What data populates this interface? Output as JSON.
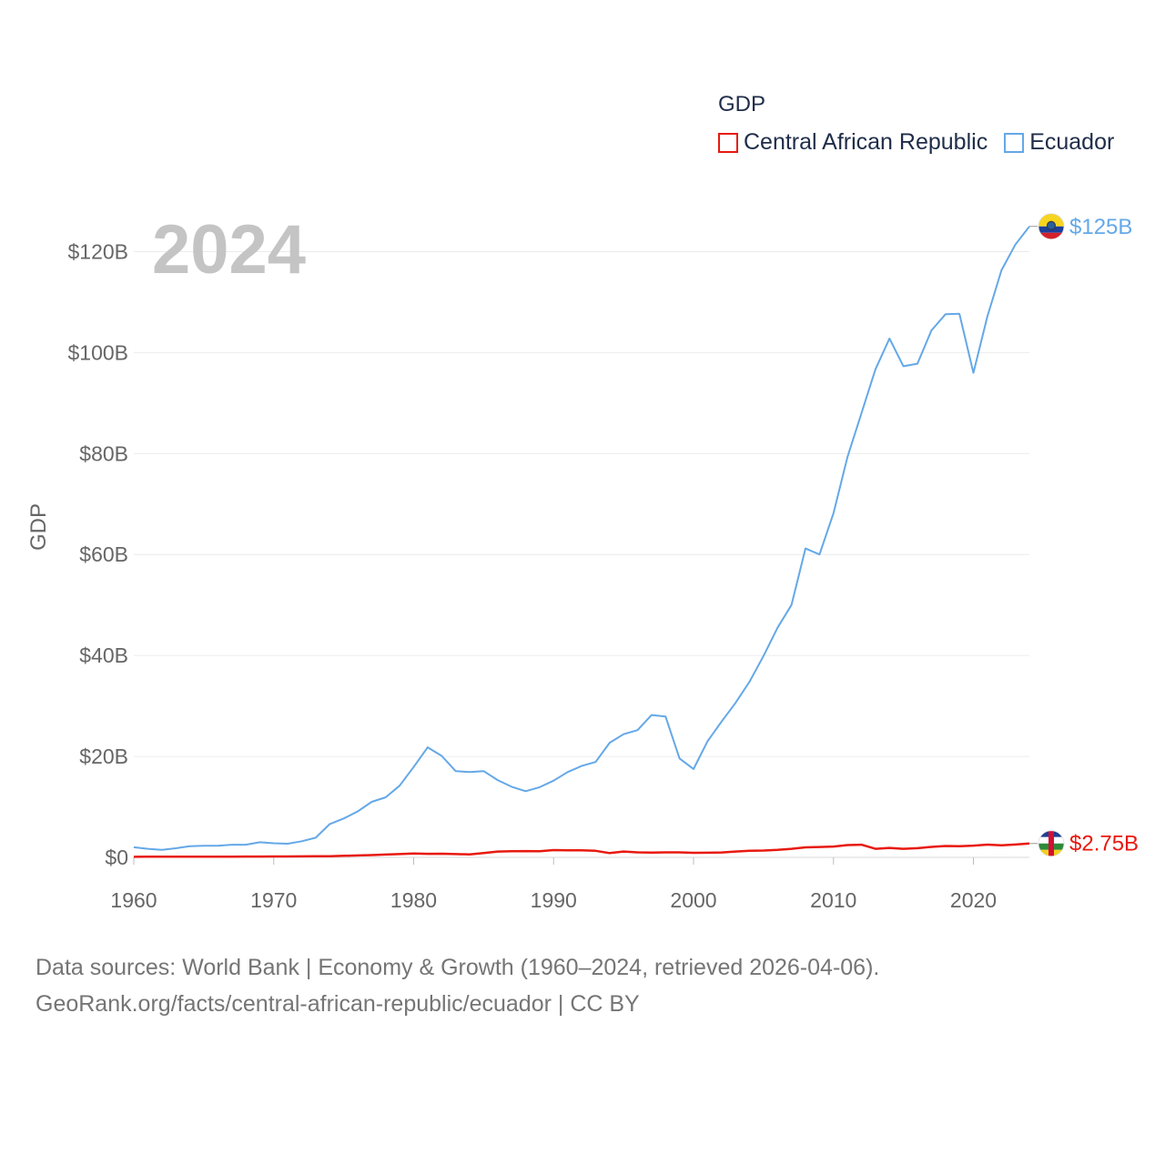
{
  "chart_data": {
    "type": "line",
    "year_label": "2024",
    "ylabel": "GDP",
    "xlim": [
      1960,
      2024
    ],
    "ylim": [
      0,
      125
    ],
    "x_ticks": [
      1960,
      1970,
      1980,
      1990,
      2000,
      2010,
      2020
    ],
    "x_tick_labels": [
      "1960",
      "1970",
      "1980",
      "1990",
      "2000",
      "2010",
      "2020"
    ],
    "y_ticks": [
      0,
      20,
      40,
      60,
      80,
      100,
      120
    ],
    "y_tick_labels": [
      "$0",
      "$20B",
      "$40B",
      "$60B",
      "$80B",
      "$100B",
      "$120B"
    ],
    "legend": {
      "title": "GDP",
      "items": [
        {
          "label": "Central African Republic",
          "color": "#e8190f"
        },
        {
          "label": "Ecuador",
          "color": "#64a8e8"
        }
      ]
    },
    "series": [
      {
        "name": "Central African Republic",
        "color": "#e8190f",
        "end_label": "$2.75B",
        "x": [
          1960,
          1961,
          1962,
          1963,
          1964,
          1965,
          1966,
          1967,
          1968,
          1969,
          1970,
          1971,
          1972,
          1973,
          1974,
          1975,
          1976,
          1977,
          1978,
          1979,
          1980,
          1981,
          1982,
          1983,
          1984,
          1985,
          1986,
          1987,
          1988,
          1989,
          1990,
          1991,
          1992,
          1993,
          1994,
          1995,
          1996,
          1997,
          1998,
          1999,
          2000,
          2001,
          2002,
          2003,
          2004,
          2005,
          2006,
          2007,
          2008,
          2009,
          2010,
          2011,
          2012,
          2013,
          2014,
          2015,
          2016,
          2017,
          2018,
          2019,
          2020,
          2021,
          2022,
          2023,
          2024
        ],
        "values": [
          0.11,
          0.12,
          0.13,
          0.13,
          0.13,
          0.14,
          0.15,
          0.15,
          0.16,
          0.17,
          0.18,
          0.18,
          0.19,
          0.22,
          0.24,
          0.3,
          0.38,
          0.45,
          0.55,
          0.65,
          0.75,
          0.7,
          0.72,
          0.65,
          0.6,
          0.85,
          1.15,
          1.2,
          1.25,
          1.2,
          1.45,
          1.4,
          1.38,
          1.3,
          0.85,
          1.15,
          1.0,
          0.95,
          1.0,
          1.0,
          0.9,
          0.92,
          0.98,
          1.15,
          1.3,
          1.35,
          1.47,
          1.7,
          1.98,
          2.06,
          2.14,
          2.43,
          2.5,
          1.7,
          1.88,
          1.7,
          1.83,
          2.07,
          2.25,
          2.22,
          2.33,
          2.52,
          2.38,
          2.55,
          2.75
        ]
      },
      {
        "name": "Ecuador",
        "color": "#64a8e8",
        "end_label": "$125B",
        "x": [
          1960,
          1961,
          1962,
          1963,
          1964,
          1965,
          1966,
          1967,
          1968,
          1969,
          1970,
          1971,
          1972,
          1973,
          1974,
          1975,
          1976,
          1977,
          1978,
          1979,
          1980,
          1981,
          1982,
          1983,
          1984,
          1985,
          1986,
          1987,
          1988,
          1989,
          1990,
          1991,
          1992,
          1993,
          1994,
          1995,
          1996,
          1997,
          1998,
          1999,
          2000,
          2001,
          2002,
          2003,
          2004,
          2005,
          2006,
          2007,
          2008,
          2009,
          2010,
          2011,
          2012,
          2013,
          2014,
          2015,
          2016,
          2017,
          2018,
          2019,
          2020,
          2021,
          2022,
          2023,
          2024
        ],
        "values": [
          2.0,
          1.7,
          1.5,
          1.8,
          2.2,
          2.3,
          2.3,
          2.5,
          2.5,
          3.0,
          2.8,
          2.7,
          3.2,
          3.9,
          6.6,
          7.7,
          9.1,
          11.0,
          11.9,
          14.2,
          17.9,
          21.8,
          20.1,
          17.1,
          16.9,
          17.1,
          15.3,
          14.0,
          13.1,
          13.9,
          15.2,
          16.9,
          18.1,
          18.9,
          22.7,
          24.4,
          25.2,
          28.2,
          27.9,
          19.6,
          17.5,
          23.0,
          26.9,
          30.6,
          34.8,
          39.9,
          45.5,
          50.0,
          61.2,
          60.0,
          68.2,
          79.3,
          88.0,
          96.7,
          102.8,
          97.3,
          97.8,
          104.4,
          107.6,
          107.7,
          96.0,
          107.2,
          116.3,
          121.4,
          125.0
        ]
      }
    ]
  },
  "footer": {
    "line1": "Data sources: World Bank | Economy & Growth (1960–2024, retrieved 2026-04-06).",
    "line2": "GeoRank.org/facts/central-african-republic/ecuador | CC BY"
  }
}
